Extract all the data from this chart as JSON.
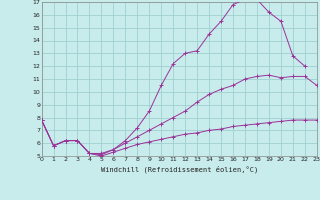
{
  "xlabel": "Windchill (Refroidissement éolien,°C)",
  "background_color": "#c8eceb",
  "grid_color": "#a0d0d0",
  "line_color": "#993399",
  "xlim": [
    0,
    23
  ],
  "ylim": [
    5,
    17
  ],
  "xticks": [
    0,
    1,
    2,
    3,
    4,
    5,
    6,
    7,
    8,
    9,
    10,
    11,
    12,
    13,
    14,
    15,
    16,
    17,
    18,
    19,
    20,
    21,
    22,
    23
  ],
  "yticks": [
    5,
    6,
    7,
    8,
    9,
    10,
    11,
    12,
    13,
    14,
    15,
    16,
    17
  ],
  "curve1_x": [
    0,
    1,
    2,
    3,
    4,
    5,
    6,
    7,
    8,
    9,
    10,
    11,
    12,
    13,
    14,
    15,
    16,
    17,
    18,
    19,
    20,
    21,
    22
  ],
  "curve1_y": [
    7.8,
    5.8,
    6.2,
    6.2,
    5.2,
    5.2,
    5.5,
    6.2,
    7.2,
    8.5,
    10.5,
    12.2,
    13.0,
    13.2,
    14.5,
    15.5,
    16.8,
    17.2,
    17.2,
    16.2,
    15.5,
    12.8,
    12.0
  ],
  "curve2_x": [
    0,
    1,
    2,
    3,
    4,
    5,
    6,
    7,
    8,
    9,
    10,
    11,
    12,
    13,
    14,
    15,
    16,
    17,
    18,
    19,
    20,
    21,
    22,
    23
  ],
  "curve2_y": [
    7.8,
    5.8,
    6.2,
    6.2,
    5.2,
    5.1,
    5.5,
    6.0,
    6.5,
    7.0,
    7.5,
    8.0,
    8.5,
    9.2,
    9.8,
    10.2,
    10.5,
    11.0,
    11.2,
    11.3,
    11.1,
    11.2,
    11.2,
    10.5
  ],
  "curve3_x": [
    0,
    1,
    2,
    3,
    4,
    5,
    6,
    7,
    8,
    9,
    10,
    11,
    12,
    13,
    14,
    15,
    16,
    17,
    18,
    19,
    20,
    21,
    22,
    23
  ],
  "curve3_y": [
    7.8,
    5.8,
    6.2,
    6.2,
    5.2,
    5.0,
    5.3,
    5.6,
    5.9,
    6.1,
    6.3,
    6.5,
    6.7,
    6.8,
    7.0,
    7.1,
    7.3,
    7.4,
    7.5,
    7.6,
    7.7,
    7.8,
    7.8,
    7.8
  ]
}
